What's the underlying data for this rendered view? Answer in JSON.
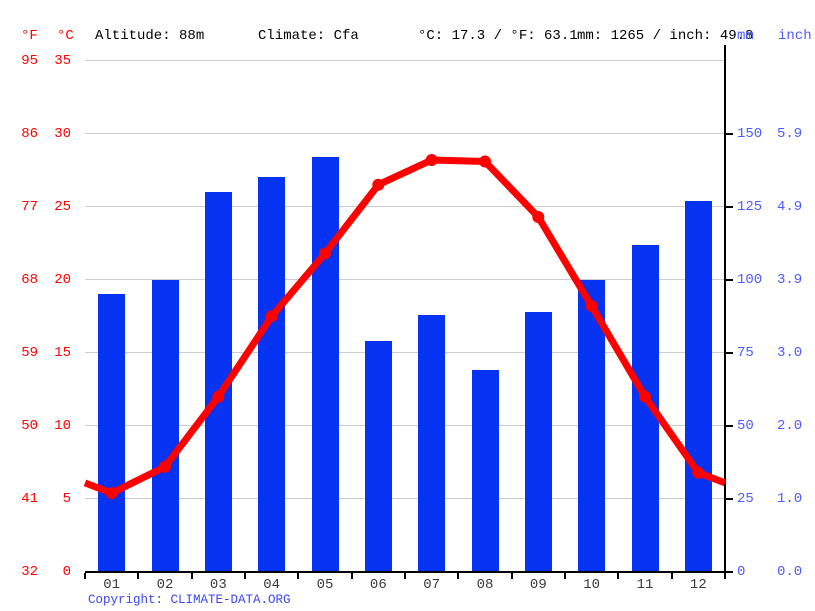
{
  "header": {
    "unit_f": "°F",
    "unit_c": "°C",
    "altitude": "Altitude: 88m",
    "climate": "Climate: Cfa",
    "temp_summary": "°C: 17.3 / °F: 63.1",
    "precip_summary": "mm: 1265 / inch: 49.8",
    "unit_mm": "mm",
    "unit_inch": "inch"
  },
  "axes": {
    "left_f": [
      "95",
      "86",
      "77",
      "68",
      "59",
      "50",
      "41",
      "32"
    ],
    "left_c": [
      "35",
      "30",
      "25",
      "20",
      "15",
      "10",
      "5",
      "0"
    ],
    "right_mm": [
      "150",
      "125",
      "100",
      "75",
      "50",
      "25",
      "0"
    ],
    "right_inch": [
      "5.9",
      "4.9",
      "3.9",
      "3.0",
      "2.0",
      "1.0",
      "0.0"
    ]
  },
  "chart_data": {
    "type": "bar+line",
    "categories": [
      "01",
      "02",
      "03",
      "04",
      "05",
      "06",
      "07",
      "08",
      "09",
      "10",
      "11",
      "12"
    ],
    "series": [
      {
        "name": "precipitation_mm",
        "type": "bar",
        "values": [
          95,
          100,
          130,
          135,
          142,
          79,
          88,
          69,
          89,
          100,
          112,
          127
        ]
      },
      {
        "name": "temperature_c",
        "type": "line",
        "values": [
          5.4,
          7.2,
          12.0,
          17.5,
          21.8,
          26.5,
          28.2,
          28.1,
          24.3,
          18.2,
          12.0,
          6.8
        ]
      }
    ],
    "title": "",
    "xlabel": "",
    "ylabel_left": "°C",
    "ylabel_right": "mm",
    "temp_axis_c": [
      0,
      35
    ],
    "precip_axis_mm": [
      0,
      175
    ],
    "grid": true,
    "annotations": {
      "mean_temp": "°C: 17.3 / °F: 63.1",
      "annual_precip": "mm: 1265 / inch: 49.8"
    }
  },
  "footer": {
    "copyright_label": "Copyright: ",
    "link_text": "CLIMATE-DATA.ORG"
  },
  "colors": {
    "temp_line": "#ff0000",
    "precip_bar": "#0533f1",
    "left_labels": "#ff0000",
    "right_labels": "#4d5bff",
    "copyright": "#3c46f0",
    "gridline": "#cccccc",
    "axis": "#000000"
  }
}
